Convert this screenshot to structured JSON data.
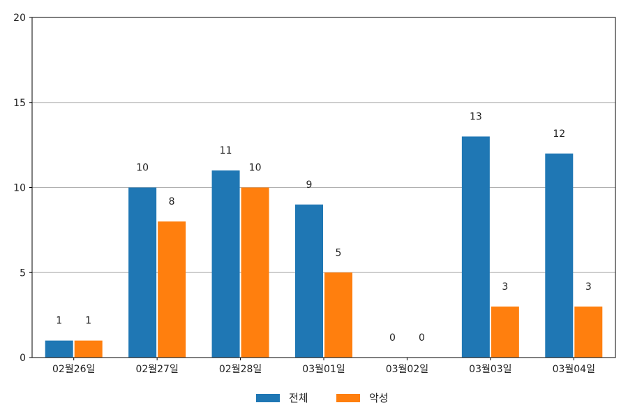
{
  "chart_data": {
    "type": "bar",
    "categories": [
      "02월26일",
      "02월27일",
      "02월28일",
      "03월01일",
      "03월02일",
      "03월03일",
      "03월04일"
    ],
    "series": [
      {
        "name": "전체",
        "values": [
          1,
          10,
          11,
          9,
          0,
          13,
          12
        ],
        "color": "#1f77b4"
      },
      {
        "name": "악성",
        "values": [
          1,
          8,
          10,
          5,
          0,
          3,
          3
        ],
        "color": "#ff7f0e"
      }
    ],
    "ylim": [
      0,
      20
    ],
    "yticks": [
      0,
      5,
      10,
      15,
      20
    ],
    "grid": "horizontal",
    "legend_position": "bottom-center",
    "data_labels": true
  }
}
